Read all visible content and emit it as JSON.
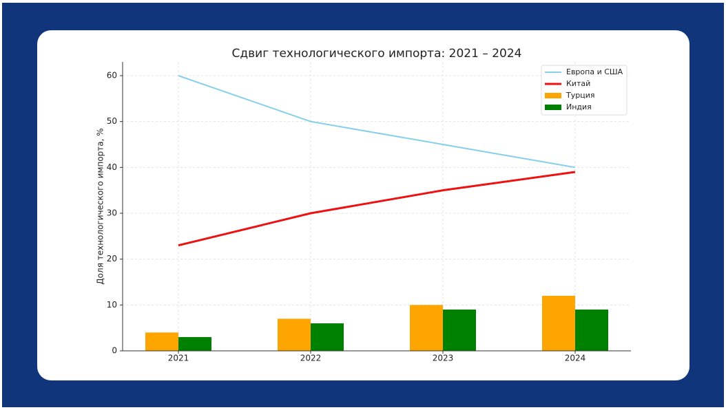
{
  "chart_data": {
    "type": "combo",
    "title": "Сдвиг технологического импорта: 2021 – 2024",
    "y_label": "Доля технологического импорта, %",
    "categories": [
      "2021",
      "2022",
      "2023",
      "2024"
    ],
    "series": [
      {
        "name": "Европа и США",
        "type": "line",
        "color": "#87ceeb",
        "values": [
          60,
          50,
          45,
          40
        ]
      },
      {
        "name": "Китай",
        "type": "line",
        "color": "#ee1111",
        "values": [
          23,
          30,
          35,
          39
        ]
      },
      {
        "name": "Турция",
        "type": "bar",
        "color": "#ffa500",
        "values": [
          4,
          7,
          10,
          12
        ]
      },
      {
        "name": "Индия",
        "type": "bar",
        "color": "#008000",
        "values": [
          3,
          6,
          9,
          9
        ]
      }
    ],
    "ylim": [
      0,
      63
    ],
    "yticks": [
      0,
      10,
      20,
      30,
      40,
      50,
      60
    ],
    "grid": true,
    "legend": "upper right"
  }
}
